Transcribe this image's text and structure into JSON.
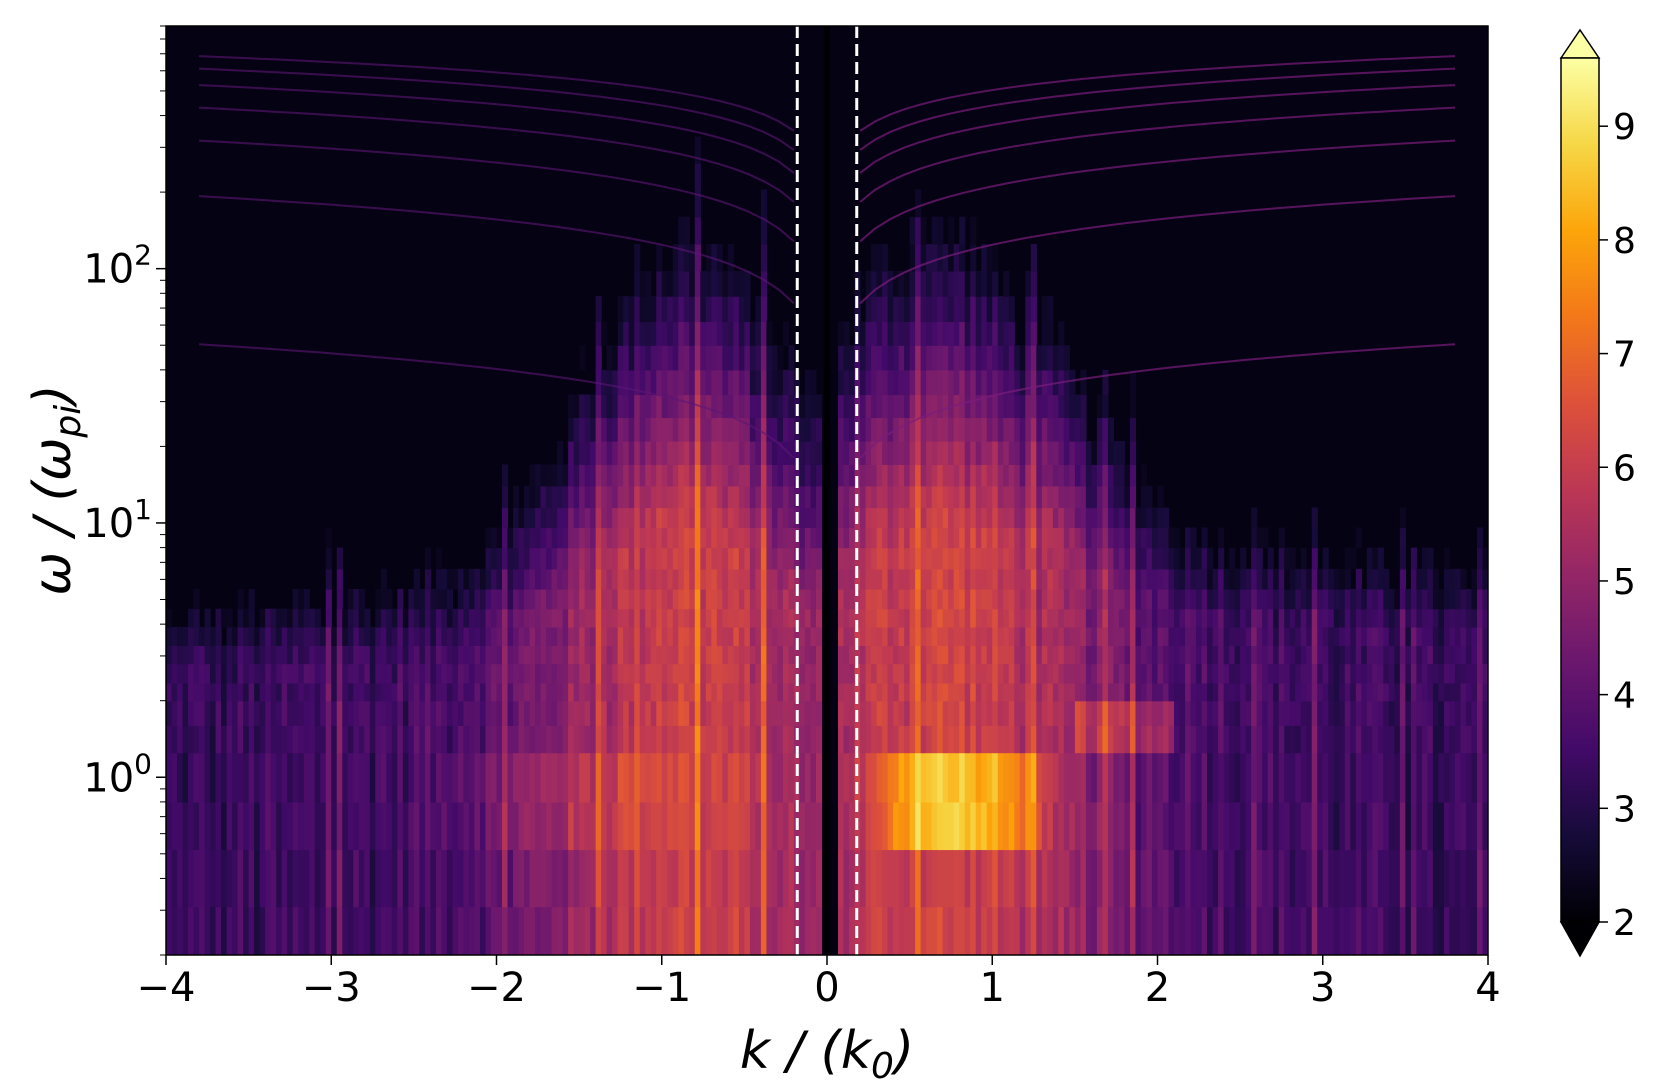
{
  "chart_data": {
    "type": "heatmap",
    "colormap": "inferno",
    "title": "",
    "x_axis": {
      "label_main": "k / (k",
      "label_sub": "0",
      "label_close": ")",
      "range": [
        -4,
        4
      ],
      "ticks": [
        -4,
        -3,
        -2,
        -1,
        0,
        1,
        2,
        3,
        4
      ],
      "tick_labels": [
        "−4",
        "−3",
        "−2",
        "−1",
        "0",
        "1",
        "2",
        "3",
        "4"
      ]
    },
    "y_axis": {
      "label_main": "ω / (ω",
      "label_sub": "pi",
      "label_close": ")",
      "scale": "log",
      "range": [
        0.2,
        900
      ],
      "ticks": [
        {
          "value": 1,
          "base": "10",
          "exp": "0"
        },
        {
          "value": 10,
          "base": "10",
          "exp": "1"
        },
        {
          "value": 100,
          "base": "10",
          "exp": "2"
        }
      ]
    },
    "colorbar": {
      "range": [
        2,
        9.6
      ],
      "extend": "both",
      "ticks": [
        "2",
        "3",
        "4",
        "5",
        "6",
        "7",
        "8",
        "9"
      ]
    },
    "reference_lines": [
      {
        "orientation": "vertical",
        "x": -0.18,
        "style": "dashed",
        "color": "#ffffff"
      },
      {
        "orientation": "vertical",
        "x": 0.18,
        "style": "dashed",
        "color": "#ffffff"
      }
    ],
    "features": {
      "bright_band_peak_value": 9.4,
      "bright_band_k_range": [
        0.4,
        1.3
      ],
      "bright_band_omega_range": [
        0.5,
        1.25
      ],
      "background_value": 2.2
    }
  }
}
